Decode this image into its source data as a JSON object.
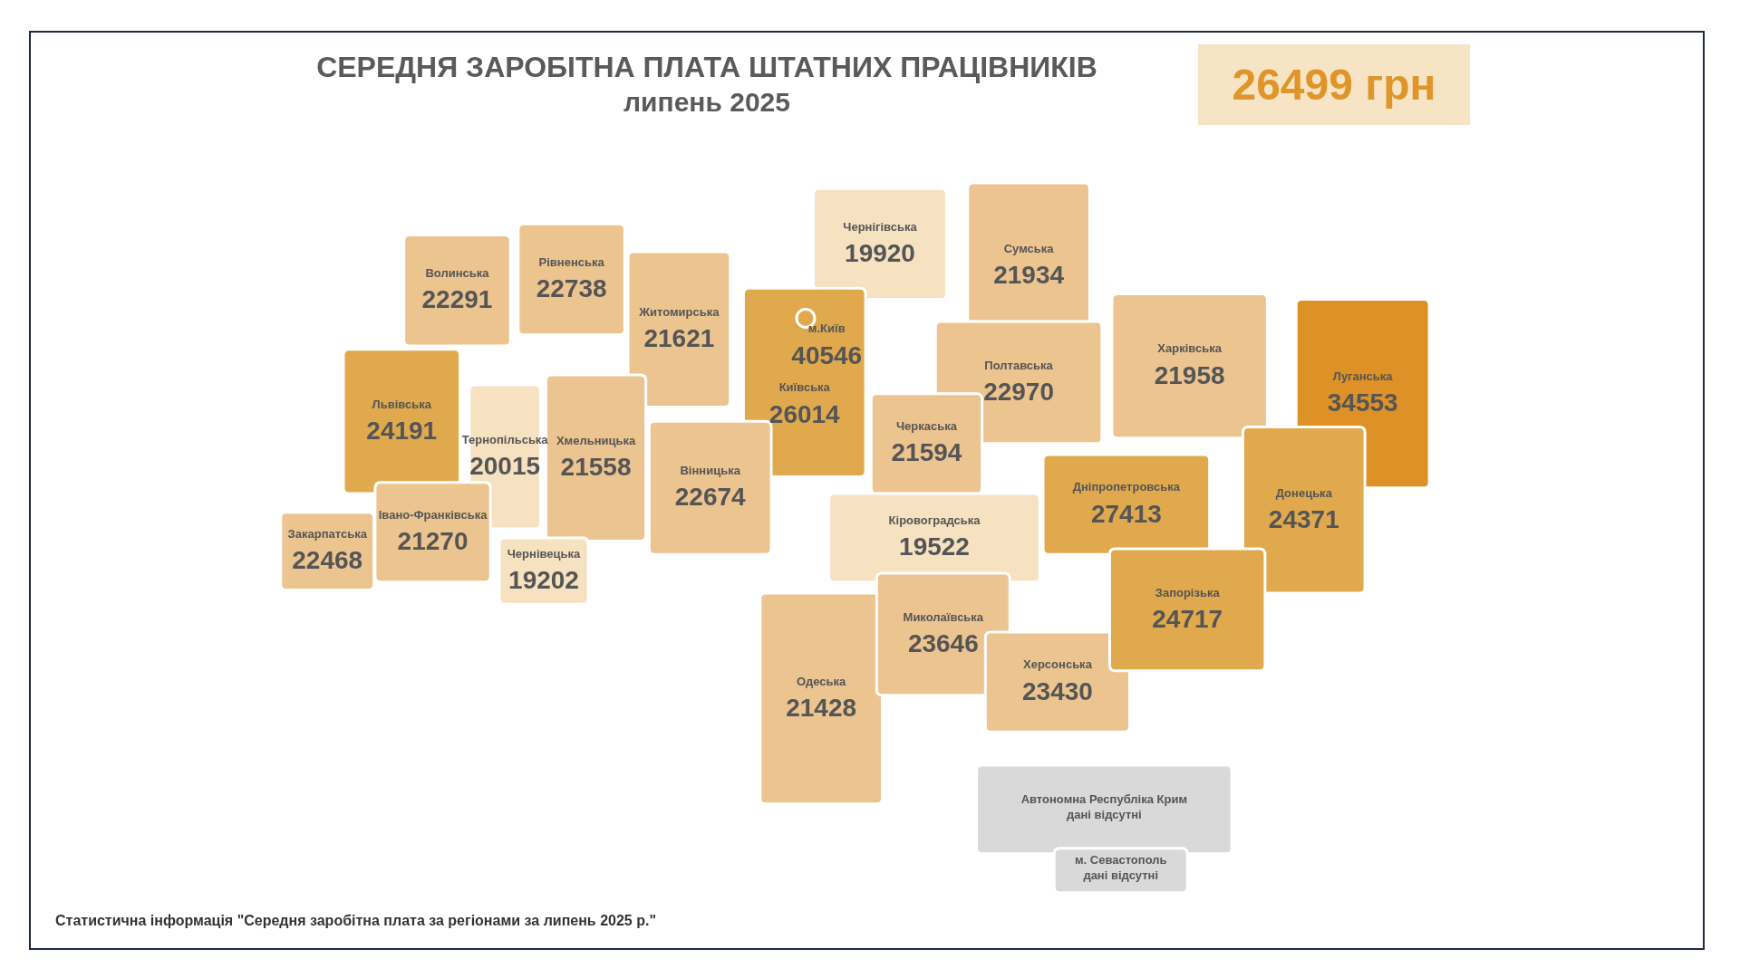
{
  "chart_data": {
    "type": "other",
    "title": "СЕРЕДНЯ ЗАРОБІТНА ПЛАТА ШТАТНИХ ПРАЦІВНИКІВ",
    "subtitle": "липень 2025",
    "categories": [
      "Волинська",
      "Рівненська",
      "Житомирська",
      "Чернігівська",
      "Сумська",
      "м.Київ",
      "Київська",
      "Харківська",
      "Луганська",
      "Полтавська",
      "Черкаська",
      "Львівська",
      "Тернопільська",
      "Хмельницька",
      "Вінницька",
      "Кіровоградська",
      "Дніпропетровська",
      "Донецька",
      "Закарпатська",
      "Івано-Франківська",
      "Чернівецька",
      "Одеська",
      "Миколаївська",
      "Херсонська",
      "Запорізька",
      "Автономна Республіка Крим",
      "м. Севастополь"
    ],
    "values": [
      22291,
      22738,
      21621,
      19920,
      21934,
      40546,
      26014,
      21958,
      34553,
      22970,
      21594,
      24191,
      20015,
      21558,
      22674,
      19522,
      27413,
      24371,
      22468,
      21270,
      19202,
      21428,
      23646,
      23430,
      24717,
      null,
      null
    ],
    "data_labels": true,
    "colors": [
      "#ecc48f",
      "#ecc48f",
      "#ecc48f",
      "#f6e2c0",
      "#ecc48f",
      "#e0a94d",
      "#e0a94d",
      "#ecc48f",
      "#de9126",
      "#ecc48f",
      "#ecc48f",
      "#e0a94d",
      "#f6e2c0",
      "#ecc48f",
      "#ecc48f",
      "#f6e2c0",
      "#e0a94d",
      "#e0a94d",
      "#ecc48f",
      "#ecc48f",
      "#f6e2c0",
      "#ecc48f",
      "#ecc48f",
      "#ecc48f",
      "#e0a94d",
      "#d9d9d9",
      "#d9d9d9"
    ],
    "annotations": [
      "26499 грн",
      "дані відсутні",
      "дані відсутні",
      "Статистична інформація \"Середня заробітна плата за регіонами за липень 2025 р.\""
    ]
  }
}
